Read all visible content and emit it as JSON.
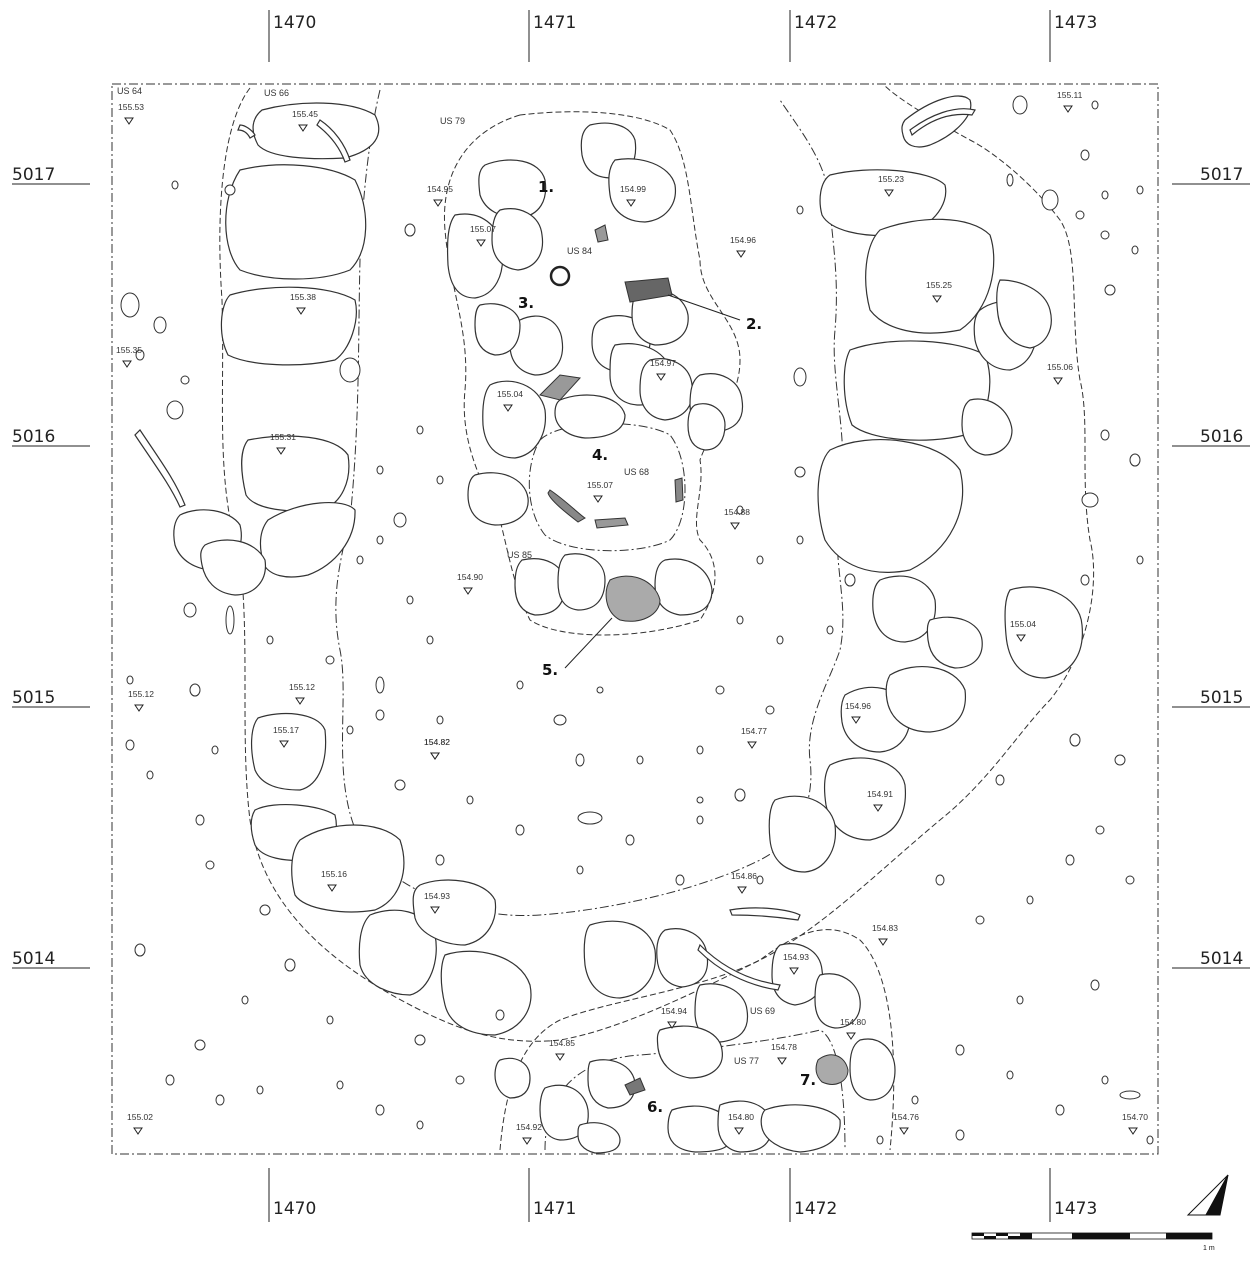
{
  "grid": {
    "x_labels": [
      "1470",
      "1471",
      "1472",
      "1473"
    ],
    "y_labels": [
      "5017",
      "5016",
      "5015",
      "5014"
    ]
  },
  "units": [
    {
      "label": "US 64",
      "id": "us64"
    },
    {
      "label": "US 66",
      "id": "us66"
    },
    {
      "label": "US 79",
      "id": "us79"
    },
    {
      "label": "US 84",
      "id": "us84"
    },
    {
      "label": "US 68",
      "id": "us68"
    },
    {
      "label": "US 85",
      "id": "us85"
    },
    {
      "label": "US 69",
      "id": "us69"
    },
    {
      "label": "US 77",
      "id": "us77"
    }
  ],
  "elevations": [
    "155.53",
    "155.45",
    "155.11",
    "154.95",
    "154.99",
    "155.23",
    "155.07",
    "154.96",
    "155.38",
    "155.25",
    "155.35",
    "154.97",
    "155.06",
    "155.04",
    "155.31",
    "155.07",
    "154.88",
    "154.90",
    "155.04",
    "155.12",
    "155.12",
    "154.82",
    "154.96",
    "155.17",
    "154.77",
    "154.82",
    "154.91",
    "155.16",
    "154.86",
    "154.93",
    "154.83",
    "154.93",
    "154.94",
    "154.80",
    "154.85",
    "154.78",
    "155.02",
    "154.92",
    "154.80",
    "154.76",
    "154.70"
  ],
  "finds": [
    "1.",
    "2.",
    "3.",
    "4.",
    "5.",
    "6.",
    "7."
  ],
  "scale": {
    "label": "1 m"
  },
  "colors": {
    "ink": "#333333",
    "find_fill": "#777777",
    "find_fill_light": "#aaaaaa"
  }
}
